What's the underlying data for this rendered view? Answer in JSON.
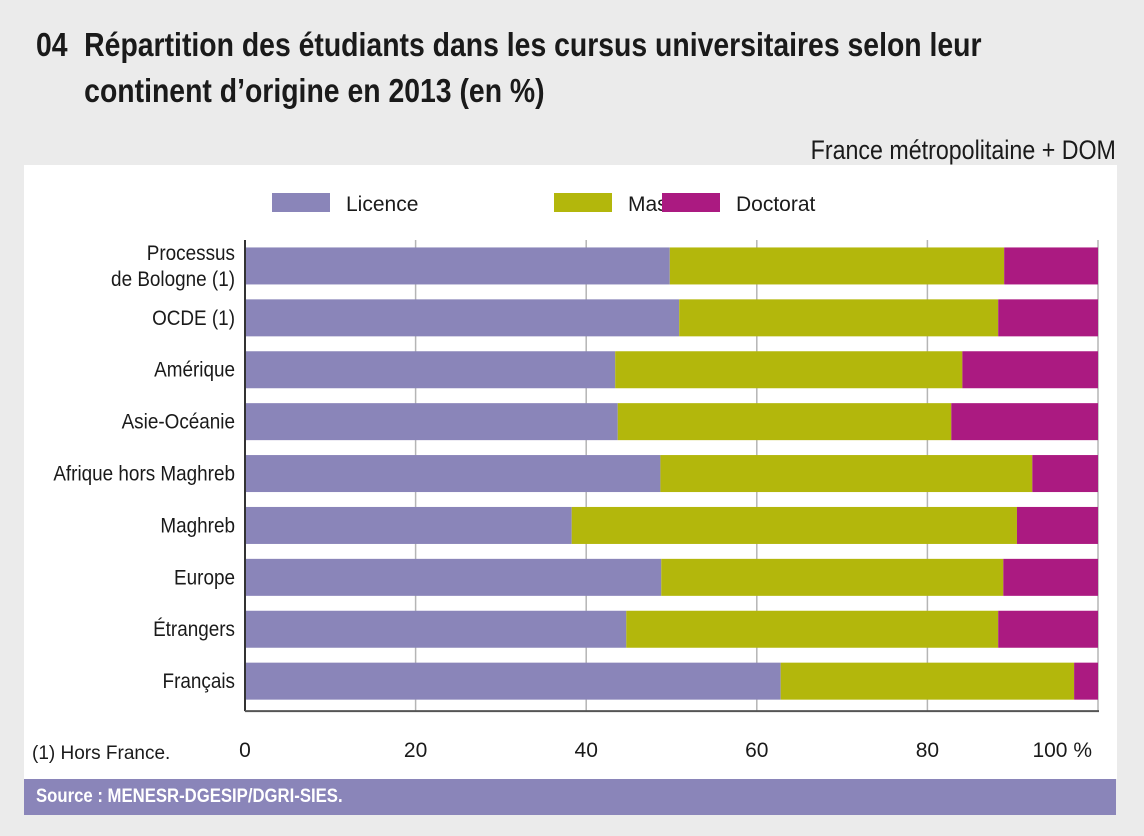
{
  "header": {
    "number": "04",
    "title_line1": "Répartition des étudiants dans les cursus universitaires selon leur",
    "title_line2": "continent d’origine en 2013 (en %)",
    "subtitle": "France métropolitaine + DOM"
  },
  "footnote": "(1) Hors France.",
  "source": "Source : MENESR-DGESIP/DGRI-SIES.",
  "chart_data": {
    "type": "bar",
    "orientation": "horizontal",
    "stacked": true,
    "title": "Répartition des étudiants dans les cursus universitaires selon leur continent d’origine en 2013 (en %)",
    "xlabel": "",
    "ylabel": "",
    "xlim": [
      0,
      100
    ],
    "x_ticks": [
      "0",
      "20",
      "40",
      "60",
      "80",
      "100 %"
    ],
    "x_tick_values": [
      0,
      20,
      40,
      60,
      80,
      100
    ],
    "grid": true,
    "legend_position": "top",
    "categories": [
      [
        "Processus",
        "de Bologne (1)"
      ],
      [
        "OCDE (1)"
      ],
      [
        "Amérique"
      ],
      [
        "Asie-Océanie"
      ],
      [
        "Afrique hors Maghreb"
      ],
      [
        "Maghreb"
      ],
      [
        "Europe"
      ],
      [
        "Étrangers"
      ],
      [
        "Français"
      ]
    ],
    "series": [
      {
        "name": "Licence",
        "color": "#8a85b9",
        "values": [
          49.8,
          50.9,
          43.4,
          43.7,
          48.7,
          38.3,
          48.8,
          44.7,
          62.8
        ]
      },
      {
        "name": "Master",
        "color": "#b3b70c",
        "values": [
          39.2,
          37.4,
          40.7,
          39.1,
          43.6,
          52.2,
          40.1,
          43.6,
          34.4
        ]
      },
      {
        "name": "Doctorat",
        "color": "#ab1a81",
        "values": [
          11.0,
          11.7,
          15.9,
          17.2,
          7.7,
          9.5,
          11.1,
          11.7,
          2.8
        ]
      }
    ]
  }
}
